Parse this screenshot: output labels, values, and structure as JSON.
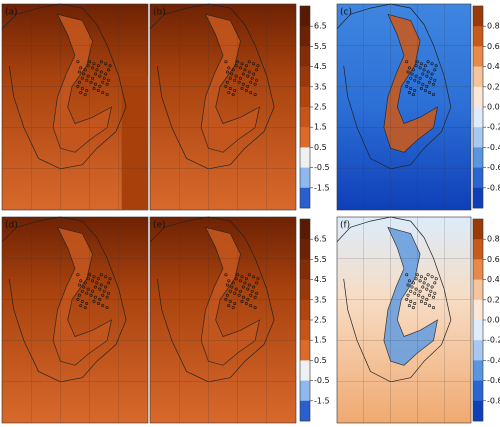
{
  "panels": [
    {
      "label": "(a)"
    },
    {
      "label": "(b)"
    },
    {
      "label": "(c)"
    },
    {
      "label": "(d)"
    },
    {
      "label": "(e)"
    },
    {
      "label": "(f)"
    }
  ],
  "colorbars": [
    {
      "ticks": [
        6.5,
        5.5,
        4.5,
        3.5,
        2.5,
        1.5,
        0.5,
        -0.5,
        -1.5
      ]
    },
    {
      "ticks": [
        {
          "value": 0.8,
          "label": "0.80"
        },
        {
          "value": 0.6,
          "label": "0.60"
        },
        {
          "value": 0.4,
          "label": "0.40"
        },
        {
          "value": 0.2,
          "label": "0.20"
        },
        {
          "value": 0,
          "label": "0.00"
        },
        {
          "value": -0.2,
          "label": "-0.20"
        },
        {
          "value": -0.4,
          "label": "-0.40"
        },
        {
          "value": -0.6,
          "label": "-0.60"
        },
        {
          "value": -0.8,
          "label": "-0.80"
        }
      ]
    },
    {
      "ticks": [
        6.5,
        5.5,
        4.5,
        3.5,
        2.5,
        1.5,
        0.5,
        -0.5,
        -1.5
      ]
    },
    {
      "ticks": [
        {
          "value": 0.8,
          "label": "0.80"
        },
        {
          "value": 0.6,
          "label": "0.60"
        },
        {
          "value": 0.4,
          "label": "0.40"
        },
        {
          "value": 0.2,
          "label": "0.20"
        },
        {
          "value": 0,
          "label": "0.00"
        },
        {
          "value": -0.2,
          "label": "-0.20"
        },
        {
          "value": -0.4,
          "label": "-0.40"
        },
        {
          "value": -0.6,
          "label": "-0.60"
        },
        {
          "value": -0.8,
          "label": "-0.80"
        }
      ]
    }
  ]
}
